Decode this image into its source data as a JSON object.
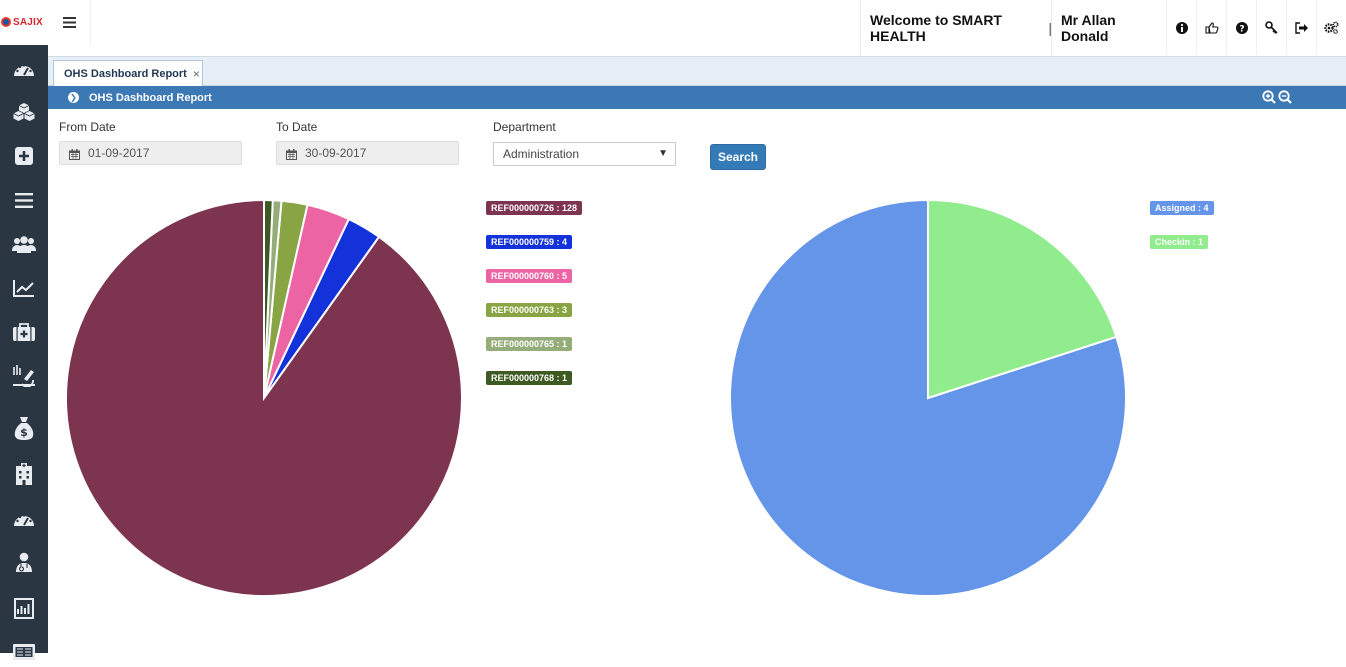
{
  "header": {
    "logo_text": "SAJIX",
    "welcome_text": "Welcome to SMART HEALTH",
    "welcome_separator": "|",
    "user_name": "Mr Allan Donald",
    "icons": [
      "info-icon",
      "thumbs-up-icon",
      "help-icon",
      "key-icon",
      "sign-out-icon",
      "settings-icon"
    ]
  },
  "sidebar": {
    "items": [
      "dashboard-icon",
      "cubes-icon",
      "plus-square-icon",
      "list-icon",
      "users-icon",
      "line-chart-icon",
      "medkit-icon",
      "microscope-icon",
      "money-bag-icon",
      "hospital-icon",
      "dashboard-icon",
      "user-md-icon",
      "report-icon",
      "newspaper-icon"
    ]
  },
  "tabs": [
    {
      "label": "OHS Dashboard Report",
      "close": "×"
    }
  ],
  "page_title": "OHS Dashboard Report",
  "filters": {
    "from_label": "From Date",
    "from_value": "01-09-2017",
    "to_label": "To Date",
    "to_value": "30-09-2017",
    "dept_label": "Department",
    "dept_value": "Administration",
    "search_label": "Search"
  },
  "chart_data": [
    {
      "type": "pie",
      "legend_position": "right",
      "categories": [
        "REF000000726",
        "REF000000759",
        "REF000000760",
        "REF000000763",
        "REF000000765",
        "REF000000768"
      ],
      "values": [
        128,
        4,
        5,
        3,
        1,
        1
      ],
      "legend_labels": [
        "REF000000726 : 128",
        "REF000000759 : 4",
        "REF000000760 : 5",
        "REF000000763 : 3",
        "REF000000765 : 1",
        "REF000000768 : 1"
      ],
      "colors": [
        "#7d344e",
        "#1432d9",
        "#ed64a4",
        "#88a443",
        "#95ad7a",
        "#3e5a23"
      ]
    },
    {
      "type": "pie",
      "legend_position": "right",
      "categories": [
        "Assigned",
        "Checkin"
      ],
      "values": [
        4,
        1
      ],
      "legend_labels": [
        "Assigned : 4",
        "Checkin : 1"
      ],
      "colors": [
        "#6495e8",
        "#90ec8c"
      ]
    }
  ]
}
